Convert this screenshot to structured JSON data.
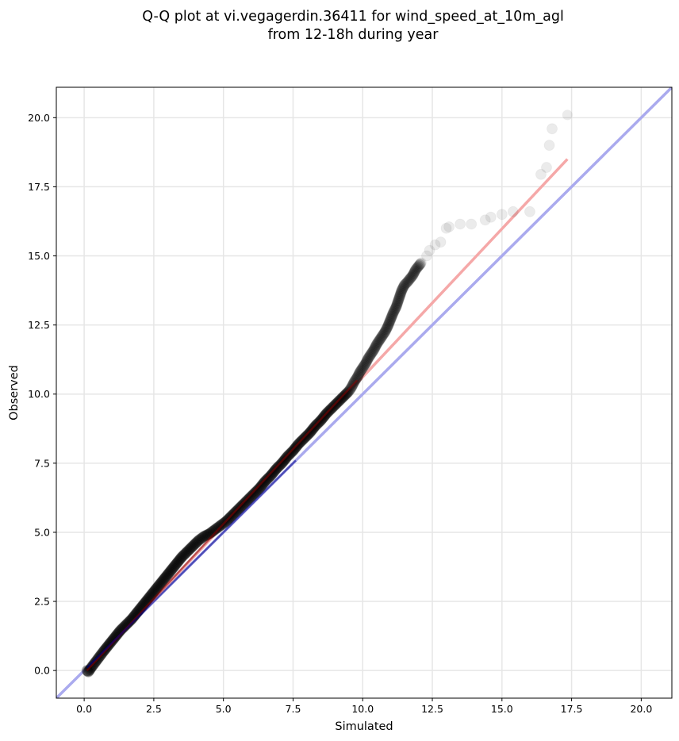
{
  "chart_data": {
    "type": "scatter",
    "title_lines": [
      "Q-Q plot at vi.vegagerdin.36411 for wind_speed_at_10m_agl",
      "from 12-18h during year"
    ],
    "xlabel": "Simulated",
    "ylabel": "Observed",
    "xlim": [
      -1.0,
      21.1
    ],
    "ylim": [
      -1.0,
      21.1
    ],
    "xticks": [
      0.0,
      2.5,
      5.0,
      7.5,
      10.0,
      12.5,
      15.0,
      17.5,
      20.0
    ],
    "yticks": [
      0.0,
      2.5,
      5.0,
      7.5,
      10.0,
      12.5,
      15.0,
      17.5,
      20.0
    ],
    "tick_labels": [
      "0.0",
      "2.5",
      "5.0",
      "7.5",
      "10.0",
      "12.5",
      "15.0",
      "17.5",
      "20.0"
    ],
    "grid": true,
    "colors": {
      "points": "#000000",
      "identity_line": "#aaaaee",
      "fit_line": "#f5a8a8",
      "fit_line_dark": "#8b0000",
      "identity_line_dark": "#00008b"
    },
    "identity_line": {
      "x": [
        -1.0,
        21.1
      ],
      "y": [
        -1.0,
        21.1
      ]
    },
    "fit_line": {
      "x": [
        0.1,
        17.35
      ],
      "y": [
        0.0,
        18.5
      ]
    },
    "quantile_points": {
      "x": [
        0.1,
        0.15,
        0.25,
        0.4,
        0.55,
        0.7,
        0.9,
        1.1,
        1.3,
        1.5,
        1.7,
        1.9,
        2.1,
        2.3,
        2.5,
        2.7,
        2.9,
        3.1,
        3.3,
        3.5,
        3.7,
        3.9,
        4.1,
        4.3,
        4.5,
        4.7,
        4.9,
        5.1,
        5.3,
        5.5,
        5.7,
        5.9,
        6.1,
        6.3,
        6.5,
        6.7,
        6.9,
        7.1,
        7.3,
        7.5,
        7.7,
        7.9,
        8.1,
        8.3,
        8.5,
        8.7,
        8.9,
        9.1,
        9.3,
        9.5,
        9.6,
        9.7,
        9.8,
        9.9,
        10.0,
        10.1,
        10.2,
        10.3,
        10.4,
        10.5,
        10.6,
        10.7,
        10.8,
        10.9,
        11.0,
        11.1,
        11.2,
        11.3,
        11.4,
        11.5,
        11.6,
        11.8,
        11.9,
        12.1,
        12.3,
        12.4,
        12.6,
        12.8,
        13.0,
        13.1,
        13.5,
        13.9,
        14.4,
        14.6,
        15.0,
        15.4,
        16.0,
        16.4,
        16.6,
        16.7,
        16.8,
        17.35
      ],
      "y": [
        0.0,
        -0.05,
        0.1,
        0.3,
        0.5,
        0.7,
        0.95,
        1.2,
        1.45,
        1.65,
        1.85,
        2.1,
        2.35,
        2.6,
        2.85,
        3.1,
        3.35,
        3.6,
        3.85,
        4.1,
        4.3,
        4.5,
        4.7,
        4.85,
        4.95,
        5.1,
        5.25,
        5.4,
        5.6,
        5.8,
        6.0,
        6.2,
        6.4,
        6.6,
        6.85,
        7.05,
        7.3,
        7.5,
        7.75,
        7.95,
        8.2,
        8.4,
        8.6,
        8.85,
        9.05,
        9.3,
        9.5,
        9.7,
        9.9,
        10.1,
        10.25,
        10.45,
        10.6,
        10.8,
        10.95,
        11.1,
        11.3,
        11.45,
        11.6,
        11.8,
        11.95,
        12.1,
        12.25,
        12.45,
        12.7,
        12.95,
        13.15,
        13.45,
        13.75,
        13.95,
        14.05,
        14.3,
        14.5,
        14.75,
        15.0,
        15.2,
        15.4,
        15.5,
        16.0,
        16.05,
        16.15,
        16.15,
        16.3,
        16.4,
        16.5,
        16.6,
        16.6,
        17.95,
        18.2,
        19.0,
        19.6,
        20.1
      ]
    }
  }
}
